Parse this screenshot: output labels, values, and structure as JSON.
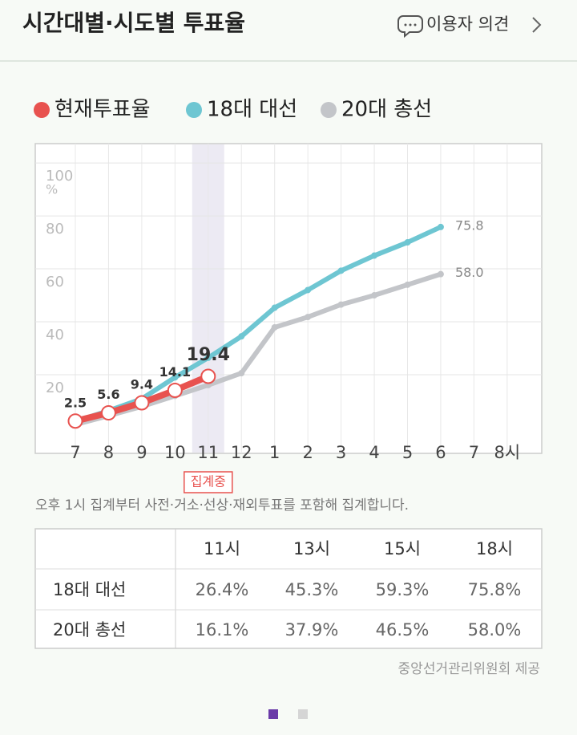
{
  "header": {
    "title": "시간대별·시도별 투표율",
    "link": "이용자 의견"
  },
  "chart_data": {
    "type": "line",
    "categories": [
      "7",
      "8",
      "9",
      "10",
      "11",
      "12",
      "1",
      "2",
      "3",
      "4",
      "5",
      "6",
      "7",
      "8시"
    ],
    "series": [
      {
        "name": "현재투표율",
        "color": "#e8524f",
        "values": [
          2.5,
          5.6,
          9.4,
          14.1,
          19.4,
          null,
          null,
          null,
          null,
          null,
          null,
          null,
          null,
          null
        ],
        "value_labels": [
          "2.5",
          "5.6",
          "9.4",
          "14.1",
          "19.4",
          null,
          null,
          null,
          null,
          null,
          null,
          null,
          null,
          null
        ]
      },
      {
        "name": "18대 대선",
        "color": "#6ec6d2",
        "values": [
          2.4,
          6.4,
          10.9,
          19,
          26.4,
          34.5,
          45.3,
          52,
          59.3,
          65,
          70,
          75.8,
          null,
          null
        ],
        "value_labels": [
          null,
          null,
          null,
          null,
          null,
          null,
          null,
          null,
          null,
          null,
          null,
          "75.8",
          null,
          null
        ]
      },
      {
        "name": "20대 총선",
        "color": "#c3c5c9",
        "values": [
          1.2,
          4.5,
          8,
          12,
          16.1,
          20.6,
          37.9,
          41.8,
          46.5,
          50,
          54,
          58.0,
          null,
          null
        ],
        "value_labels": [
          null,
          null,
          null,
          null,
          null,
          null,
          null,
          null,
          null,
          null,
          null,
          "58.0",
          null,
          null
        ]
      }
    ],
    "ylim": [
      -9.7,
      107.3
    ],
    "yticks": [
      20,
      40,
      60,
      80,
      100
    ],
    "y_unit": "%",
    "grid": true,
    "highlight": {
      "category": "11",
      "label": "집계중"
    }
  },
  "note": "오후 1시 집계부터 사전·거소·선상·재외투표를 포함해 집계합니다.",
  "table": {
    "header": [
      "11시",
      "13시",
      "15시",
      "18시"
    ],
    "rows": [
      {
        "label": "18대 대선",
        "cells": [
          "26.4%",
          "45.3%",
          "59.3%",
          "75.8%"
        ]
      },
      {
        "label": "20대 총선",
        "cells": [
          "16.1%",
          "37.9%",
          "46.5%",
          "58.0%"
        ]
      }
    ]
  },
  "source": "중앙선거관리위원회 제공"
}
